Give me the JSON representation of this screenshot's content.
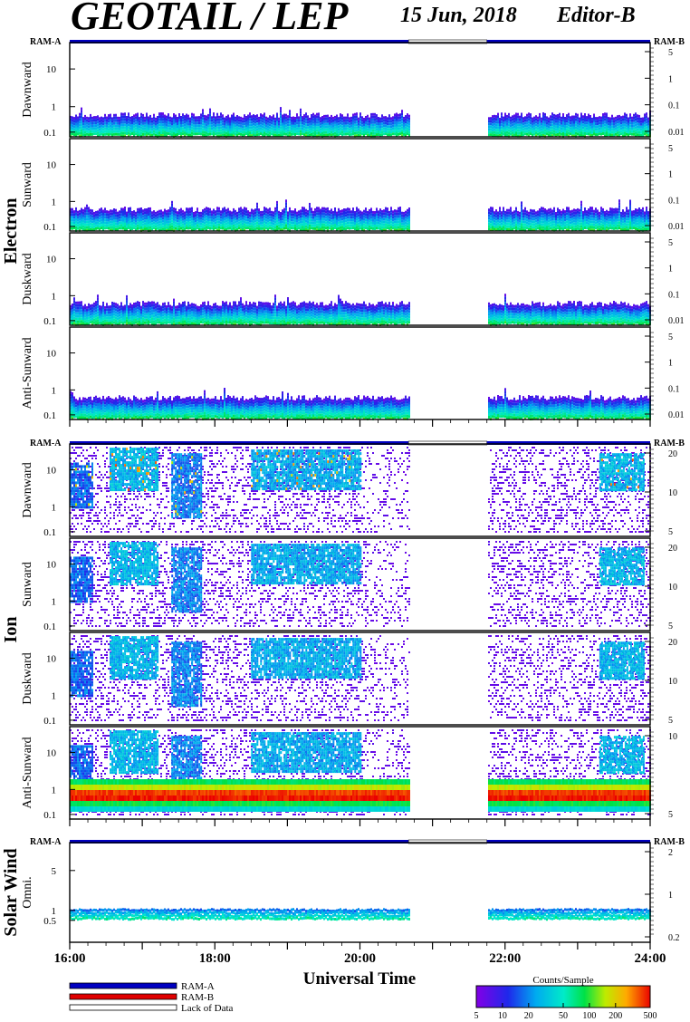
{
  "header": {
    "title": "GEOTAIL / LEP",
    "date": "15 Jun, 2018",
    "editor": "Editor-B"
  },
  "chart_data": {
    "type": "heatmap",
    "xlabel": "Universal Time",
    "x_ticks": [
      "16:00",
      "18:00",
      "20:00",
      "22:00",
      "24:00"
    ],
    "x_range_hours": [
      16,
      24
    ],
    "data_gap_hours": [
      20.67,
      21.75
    ],
    "colorbar": {
      "label": "Counts/Sample",
      "ticks": [
        "5",
        "10",
        "20",
        "50",
        "100",
        "200",
        "500"
      ],
      "range": [
        5,
        500
      ],
      "scale": "log"
    },
    "legend": [
      {
        "label": "RAM-A",
        "color": "#0000c0"
      },
      {
        "label": "RAM-B",
        "color": "#e00000"
      },
      {
        "label": "Lack of Data",
        "color": "#ffffff"
      }
    ],
    "ram_labels": {
      "left": "RAM-A",
      "right": "RAM-B"
    },
    "groups": [
      {
        "name": "Electron",
        "panels": [
          {
            "label": "Dawnward",
            "left_ticks": [
              "10",
              "1",
              "0.1"
            ],
            "right_ticks": [
              "5",
              "1",
              "0.1",
              "0.01"
            ]
          },
          {
            "label": "Sunward",
            "left_ticks": [
              "10",
              "1",
              "0.1"
            ],
            "right_ticks": [
              "5",
              "1",
              "0.1",
              "0.01"
            ]
          },
          {
            "label": "Duskward",
            "left_ticks": [
              "10",
              "1",
              "0.1"
            ],
            "right_ticks": [
              "5",
              "1",
              "0.1",
              "0.01"
            ]
          },
          {
            "label": "Anti-Sunward",
            "left_ticks": [
              "10",
              "1",
              "0.1"
            ],
            "right_ticks": [
              "5",
              "1",
              "0.1",
              "0.01"
            ]
          }
        ]
      },
      {
        "name": "Ion",
        "panels": [
          {
            "label": "Dawnward",
            "left_ticks": [
              "10",
              "1",
              "0.1"
            ],
            "right_ticks": [
              "20",
              "10",
              "5"
            ]
          },
          {
            "label": "Sunward",
            "left_ticks": [
              "10",
              "1",
              "0.1"
            ],
            "right_ticks": [
              "20",
              "10",
              "5"
            ]
          },
          {
            "label": "Duskward",
            "left_ticks": [
              "10",
              "1",
              "0.1"
            ],
            "right_ticks": [
              "20",
              "10",
              "5"
            ]
          },
          {
            "label": "Anti-Sunward",
            "left_ticks": [
              "10",
              "1",
              "0.1"
            ],
            "right_ticks": [
              "10",
              "5"
            ]
          }
        ]
      },
      {
        "name": "Solar Wind",
        "panels": [
          {
            "label": "Omni.",
            "left_ticks": [
              "5",
              "1",
              "0.5"
            ],
            "right_ticks": [
              "2",
              "1",
              "0.2"
            ]
          }
        ]
      }
    ]
  }
}
